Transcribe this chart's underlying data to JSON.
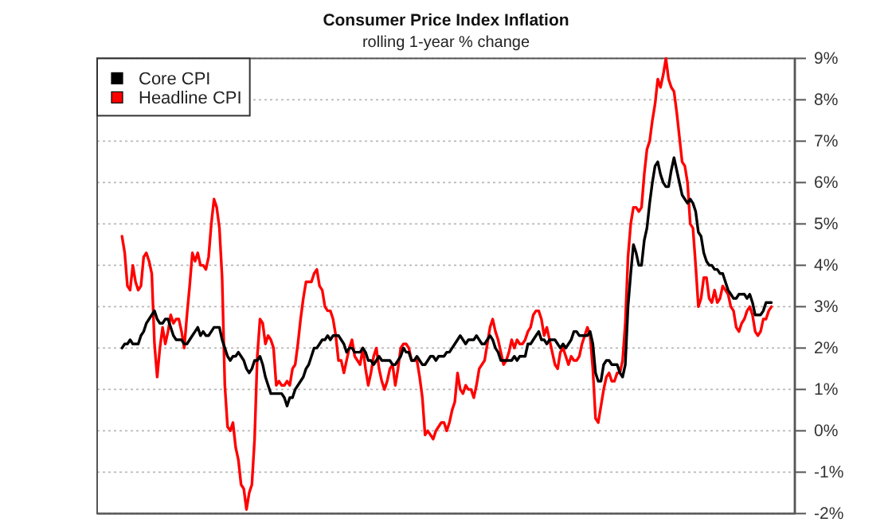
{
  "chart_data": {
    "type": "line",
    "title": "Consumer Price Index Inflation",
    "subtitle": "rolling 1-year % change",
    "categories": [
      null,
      null,
      null,
      null,
      null,
      null,
      null,
      null,
      null,
      null,
      null,
      null,
      null,
      null,
      null,
      null,
      null,
      null,
      null,
      null,
      null,
      null,
      null,
      null,
      null,
      null,
      null,
      null,
      null,
      null,
      null,
      null,
      null,
      null,
      null,
      null,
      null,
      null,
      null,
      null,
      null,
      null,
      null,
      null,
      null,
      null,
      null,
      null,
      null,
      null,
      null,
      null,
      null,
      null,
      null,
      null,
      null,
      null,
      null,
      null,
      null,
      null,
      null,
      null,
      null,
      null,
      null,
      null,
      null,
      null,
      null,
      null,
      null,
      null,
      null,
      null,
      null,
      null,
      null,
      null,
      null,
      null,
      null,
      null,
      null,
      null,
      null,
      null,
      null,
      null,
      null,
      null,
      null,
      null,
      null,
      null,
      null,
      null,
      null,
      null,
      null,
      null,
      null,
      null,
      null,
      null,
      null,
      null,
      null,
      null,
      null,
      null,
      null,
      null,
      null,
      null,
      null,
      null,
      null,
      null,
      null,
      null,
      null,
      null,
      null,
      null,
      null,
      null,
      null,
      null,
      null,
      null,
      null,
      null,
      null,
      null,
      null,
      null,
      null,
      null,
      null,
      null,
      null,
      null,
      null,
      null,
      null,
      null,
      null,
      null,
      null,
      null,
      null,
      null,
      null,
      null,
      null,
      null,
      null,
      null,
      null,
      null,
      null,
      null,
      null,
      null,
      null,
      null,
      null,
      null,
      null,
      null,
      null,
      null,
      null,
      null,
      null,
      null,
      null,
      null,
      null,
      null,
      null,
      null,
      null,
      null,
      null,
      null,
      null,
      null,
      null,
      null,
      null,
      null,
      null,
      null,
      null,
      null,
      null,
      null,
      null,
      null,
      null,
      null,
      null,
      null,
      null,
      null,
      null,
      null,
      null,
      null,
      null,
      null,
      null,
      null,
      null,
      null,
      null,
      null,
      null,
      null,
      null,
      null,
      null,
      null,
      null,
      null,
      null,
      null,
      null,
      null,
      null,
      null,
      null,
      null,
      null,
      null,
      null,
      null,
      null
    ],
    "series": [
      {
        "name": "Core CPI",
        "color": "#000000",
        "values": [
          2.0,
          2.1,
          2.1,
          2.2,
          2.1,
          2.1,
          2.1,
          2.3,
          2.4,
          2.6,
          2.7,
          2.8,
          2.9,
          2.7,
          2.6,
          2.6,
          2.7,
          2.7,
          2.5,
          2.3,
          2.2,
          2.2,
          2.2,
          2.1,
          2.1,
          2.2,
          2.3,
          2.4,
          2.5,
          2.3,
          2.4,
          2.3,
          2.3,
          2.4,
          2.5,
          2.5,
          2.5,
          2.2,
          2.0,
          1.8,
          1.7,
          1.8,
          1.8,
          1.9,
          1.8,
          1.7,
          1.5,
          1.4,
          1.5,
          1.7,
          1.7,
          1.8,
          1.6,
          1.3,
          1.1,
          0.9,
          0.9,
          0.9,
          0.9,
          0.9,
          0.8,
          0.6,
          0.8,
          0.8,
          1.0,
          1.1,
          1.2,
          1.3,
          1.5,
          1.6,
          1.8,
          2.0,
          2.0,
          2.1,
          2.2,
          2.2,
          2.3,
          2.2,
          2.3,
          2.3,
          2.3,
          2.2,
          2.1,
          1.9,
          2.0,
          2.0,
          1.9,
          1.9,
          1.9,
          2.0,
          1.9,
          1.7,
          1.7,
          1.6,
          1.7,
          1.8,
          1.7,
          1.7,
          1.7,
          1.7,
          1.6,
          1.6,
          1.7,
          1.8,
          2.0,
          1.9,
          1.9,
          1.7,
          1.7,
          1.8,
          1.7,
          1.6,
          1.6,
          1.7,
          1.8,
          1.8,
          1.7,
          1.8,
          1.8,
          1.8,
          1.9,
          1.9,
          2.0,
          2.1,
          2.2,
          2.3,
          2.2,
          2.1,
          2.2,
          2.2,
          2.2,
          2.3,
          2.2,
          2.1,
          2.1,
          2.2,
          2.3,
          2.2,
          2.0,
          1.9,
          1.7,
          1.7,
          1.7,
          1.7,
          1.7,
          1.8,
          1.7,
          1.8,
          1.8,
          1.8,
          2.1,
          2.1,
          2.2,
          2.3,
          2.4,
          2.2,
          2.2,
          2.1,
          2.2,
          2.2,
          2.2,
          2.1,
          2.0,
          2.1,
          2.0,
          2.1,
          2.2,
          2.4,
          2.4,
          2.3,
          2.3,
          2.3,
          2.3,
          2.4,
          2.1,
          1.4,
          1.2,
          1.2,
          1.6,
          1.7,
          1.7,
          1.6,
          1.6,
          1.6,
          1.4,
          1.3,
          1.6,
          3.0,
          3.8,
          4.5,
          4.3,
          4.0,
          4.0,
          4.6,
          4.9,
          5.5,
          6.0,
          6.4,
          6.5,
          6.2,
          6.0,
          5.9,
          5.9,
          6.3,
          6.6,
          6.3,
          6.0,
          5.7,
          5.6,
          5.5,
          5.6,
          5.5,
          5.3,
          4.8,
          4.7,
          4.3,
          4.1,
          4.0,
          4.0,
          3.9,
          3.9,
          3.8,
          3.8,
          3.6,
          3.4,
          3.3,
          3.2,
          3.2,
          3.3,
          3.3,
          3.3,
          3.2,
          3.3,
          3.1,
          2.8,
          2.8,
          2.8,
          2.9,
          3.1,
          3.1,
          3.1
        ]
      },
      {
        "name": "Headline CPI",
        "color": "#ff0000",
        "values": [
          4.7,
          4.3,
          3.5,
          3.4,
          4.0,
          3.6,
          3.4,
          3.5,
          4.2,
          4.3,
          4.1,
          3.8,
          2.1,
          1.3,
          2.0,
          2.5,
          2.1,
          2.4,
          2.8,
          2.6,
          2.7,
          2.7,
          2.4,
          2.0,
          2.8,
          3.5,
          4.3,
          4.1,
          4.3,
          4.0,
          4.0,
          3.9,
          4.2,
          5.0,
          5.6,
          5.4,
          4.9,
          3.7,
          1.1,
          0.1,
          0.0,
          0.2,
          -0.4,
          -0.7,
          -1.3,
          -1.4,
          -1.9,
          -1.5,
          -1.3,
          -0.2,
          1.8,
          2.7,
          2.6,
          2.1,
          2.3,
          2.2,
          2.0,
          1.1,
          1.2,
          1.1,
          1.1,
          1.2,
          1.1,
          1.5,
          1.6,
          2.1,
          2.7,
          3.2,
          3.6,
          3.6,
          3.6,
          3.8,
          3.9,
          3.5,
          3.4,
          3.0,
          2.9,
          2.9,
          2.7,
          2.3,
          1.7,
          1.7,
          1.4,
          1.7,
          2.0,
          2.2,
          1.8,
          1.7,
          1.6,
          2.0,
          1.5,
          1.1,
          1.4,
          1.8,
          2.0,
          1.5,
          1.2,
          1.0,
          1.2,
          1.5,
          1.6,
          1.1,
          1.5,
          2.0,
          2.1,
          2.1,
          2.0,
          1.7,
          1.7,
          1.7,
          1.3,
          0.8,
          -0.1,
          0.0,
          -0.1,
          -0.2,
          0.0,
          0.1,
          0.2,
          0.2,
          0.0,
          0.2,
          0.5,
          0.7,
          1.4,
          1.0,
          0.9,
          1.1,
          1.0,
          1.0,
          0.8,
          1.1,
          1.5,
          1.6,
          1.7,
          2.1,
          2.5,
          2.7,
          2.4,
          2.2,
          1.9,
          1.6,
          1.7,
          1.9,
          2.2,
          2.0,
          2.2,
          2.1,
          2.1,
          2.2,
          2.4,
          2.5,
          2.8,
          2.9,
          2.9,
          2.7,
          2.3,
          2.5,
          2.2,
          1.9,
          1.6,
          1.5,
          1.9,
          2.0,
          1.8,
          1.6,
          1.8,
          1.7,
          1.7,
          1.8,
          2.1,
          2.3,
          2.5,
          2.3,
          1.5,
          0.3,
          0.2,
          0.6,
          1.0,
          1.3,
          1.4,
          1.2,
          1.2,
          1.4,
          1.4,
          1.7,
          2.6,
          4.2,
          5.0,
          5.4,
          5.4,
          5.3,
          5.4,
          6.2,
          6.8,
          7.0,
          7.5,
          7.9,
          8.5,
          8.3,
          8.6,
          9.0,
          8.5,
          8.3,
          8.2,
          7.7,
          7.1,
          6.5,
          6.4,
          6.0,
          5.0,
          4.9,
          4.0,
          3.0,
          3.2,
          3.7,
          3.7,
          3.2,
          3.1,
          3.4,
          3.1,
          3.2,
          3.5,
          3.4,
          3.3,
          3.0,
          2.9,
          2.5,
          2.4,
          2.6,
          2.7,
          2.9,
          3.0,
          2.8,
          2.4,
          2.3,
          2.4,
          2.7,
          2.7,
          2.9,
          3.0
        ]
      }
    ],
    "ylim": [
      -2,
      9
    ],
    "yticks": [
      {
        "value": -2,
        "label": "-2%"
      },
      {
        "value": -1,
        "label": "-1%"
      },
      {
        "value": 0,
        "label": "0%"
      },
      {
        "value": 1,
        "label": "1%"
      },
      {
        "value": 2,
        "label": "2%"
      },
      {
        "value": 3,
        "label": "3%"
      },
      {
        "value": 4,
        "label": "4%"
      },
      {
        "value": 5,
        "label": "5%"
      },
      {
        "value": 6,
        "label": "6%"
      },
      {
        "value": 7,
        "label": "7%"
      },
      {
        "value": 8,
        "label": "8%"
      },
      {
        "value": 9,
        "label": "9%"
      }
    ],
    "grid": "y",
    "legend": "top left",
    "tick_labels": "y"
  }
}
